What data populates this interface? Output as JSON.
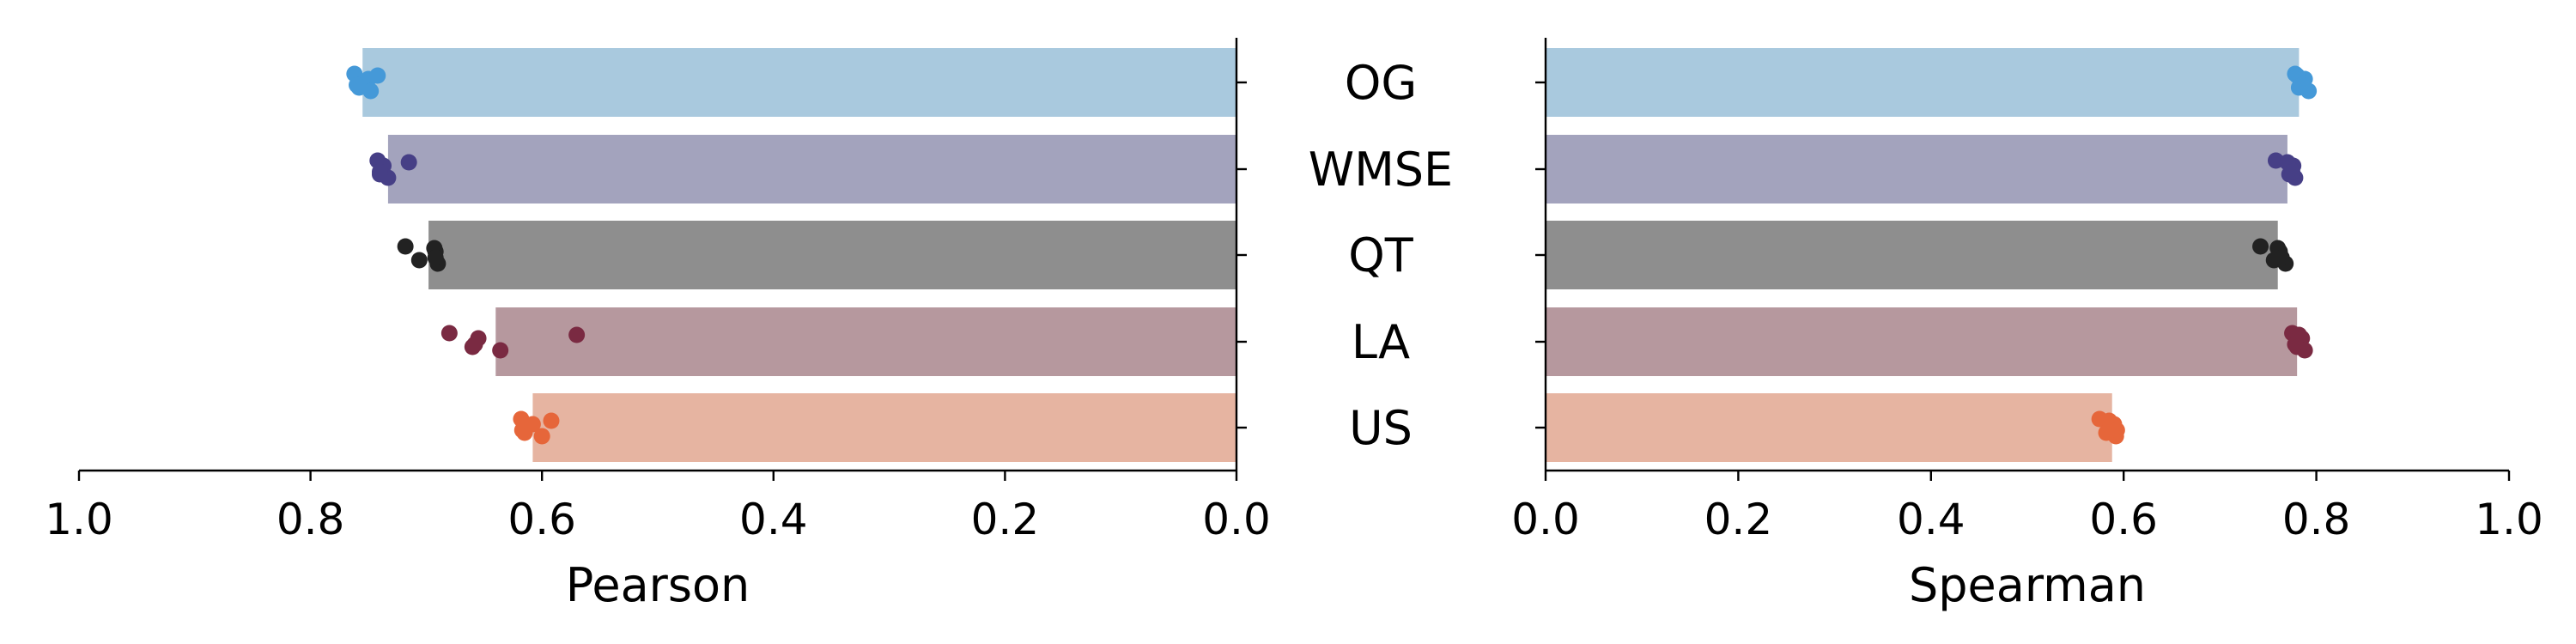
{
  "chart_data": [
    {
      "type": "bar",
      "orientation": "horizontal",
      "xlabel": "Pearson",
      "xlim": [
        1.0,
        0.0
      ],
      "x_reversed": true,
      "ticks": [
        "1.0",
        "0.8",
        "0.6",
        "0.4",
        "0.2",
        "0.0"
      ],
      "tick_values": [
        1.0,
        0.8,
        0.6,
        0.4,
        0.2,
        0.0
      ],
      "categories": [
        "OG",
        "WMSE",
        "QT",
        "LA",
        "US"
      ],
      "values": [
        0.755,
        0.733,
        0.698,
        0.64,
        0.608
      ],
      "points": [
        [
          0.762,
          0.758,
          0.75,
          0.748,
          0.742,
          0.76
        ],
        [
          0.742,
          0.74,
          0.737,
          0.733,
          0.715,
          0.74
        ],
        [
          0.718,
          0.706,
          0.692,
          0.69,
          0.693,
          0.692
        ],
        [
          0.68,
          0.66,
          0.655,
          0.636,
          0.57,
          0.658
        ],
        [
          0.618,
          0.615,
          0.608,
          0.6,
          0.592,
          0.617
        ]
      ]
    },
    {
      "type": "bar",
      "orientation": "horizontal",
      "xlabel": "Spearman",
      "xlim": [
        0.0,
        1.0
      ],
      "x_reversed": false,
      "ticks": [
        "0.0",
        "0.2",
        "0.4",
        "0.6",
        "0.8",
        "1.0"
      ],
      "tick_values": [
        0.0,
        0.2,
        0.4,
        0.6,
        0.8,
        1.0
      ],
      "categories": [
        "OG",
        "WMSE",
        "QT",
        "LA",
        "US"
      ],
      "values": [
        0.782,
        0.77,
        0.76,
        0.78,
        0.588
      ],
      "points": [
        [
          0.778,
          0.782,
          0.788,
          0.792,
          0.78,
          0.785
        ],
        [
          0.758,
          0.772,
          0.776,
          0.778,
          0.77,
          0.775
        ],
        [
          0.742,
          0.756,
          0.762,
          0.768,
          0.76,
          0.764
        ],
        [
          0.775,
          0.78,
          0.785,
          0.788,
          0.782,
          0.778
        ],
        [
          0.575,
          0.582,
          0.59,
          0.592,
          0.585,
          0.593
        ]
      ]
    }
  ],
  "colors": {
    "bars": [
      "#a9c9de",
      "#a3a3bd",
      "#8e8e8e",
      "#b6989e",
      "#e6b4a1"
    ],
    "points": [
      "#4599d8",
      "#463f86",
      "#222222",
      "#7a2a42",
      "#e6663a"
    ]
  }
}
